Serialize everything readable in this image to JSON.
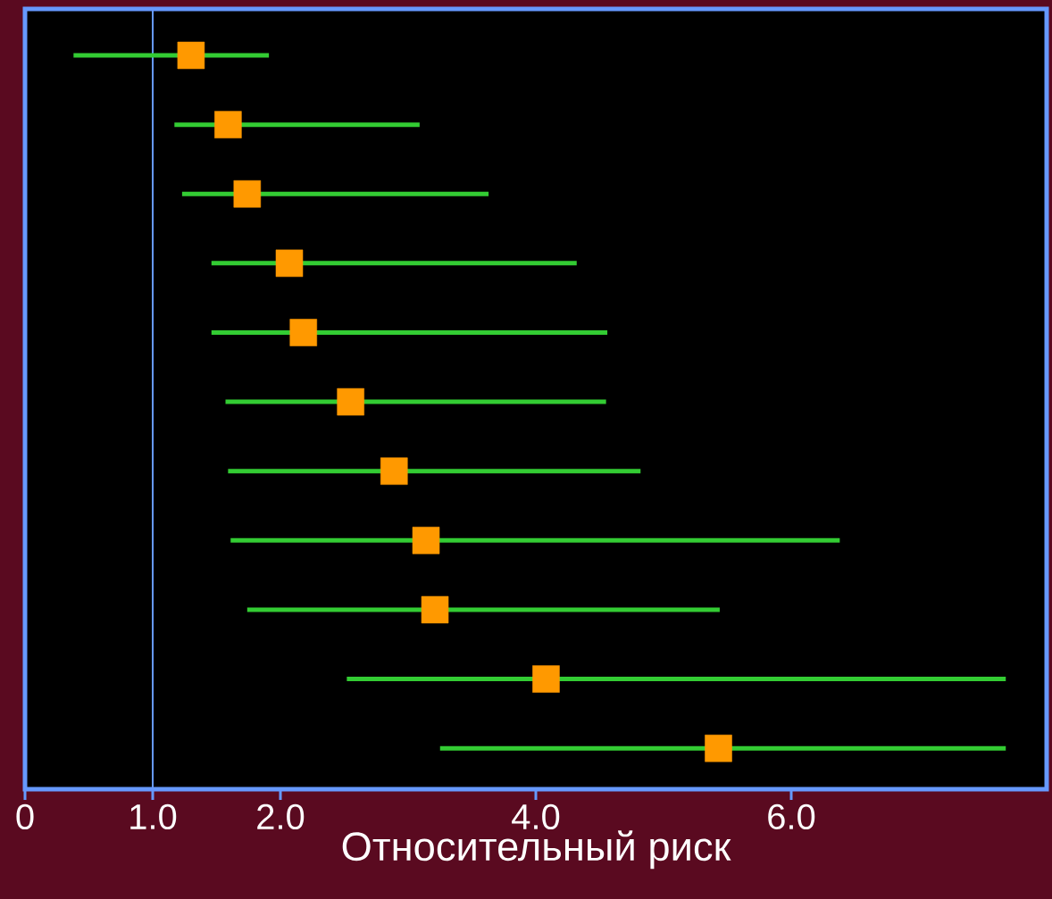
{
  "chart_data": {
    "type": "scatter",
    "orientation": "horizontal",
    "categories": [
      null,
      null,
      null,
      null,
      null,
      null,
      null,
      null,
      null,
      null,
      null
    ],
    "values": [
      1.3,
      1.59,
      1.74,
      2.07,
      2.18,
      2.55,
      2.89,
      3.14,
      3.21,
      4.08,
      5.43
    ],
    "errors": [
      [
        0.38,
        1.91
      ],
      [
        1.17,
        3.09
      ],
      [
        1.23,
        3.63
      ],
      [
        1.46,
        4.32
      ],
      [
        1.46,
        4.56
      ],
      [
        1.57,
        4.55
      ],
      [
        1.59,
        4.82
      ],
      [
        1.61,
        6.38
      ],
      [
        1.74,
        5.44
      ],
      [
        2.52,
        7.68
      ],
      [
        3.25,
        7.68
      ]
    ],
    "color": "#ff9900",
    "marker": "square",
    "xlabel": "Относительный риск",
    "xlim": [
      0,
      8
    ],
    "xticks": [
      {
        "value": 0,
        "label": "0"
      },
      {
        "value": 1,
        "label": "1.0"
      },
      {
        "value": 2,
        "label": "2.0"
      },
      {
        "value": 4,
        "label": "4.0"
      },
      {
        "value": 6,
        "label": "6.0"
      }
    ],
    "ref_lines": [
      {
        "axis": "x",
        "value": 1,
        "color": "#6699ff"
      }
    ],
    "tick_labels": "x",
    "grid": false
  }
}
